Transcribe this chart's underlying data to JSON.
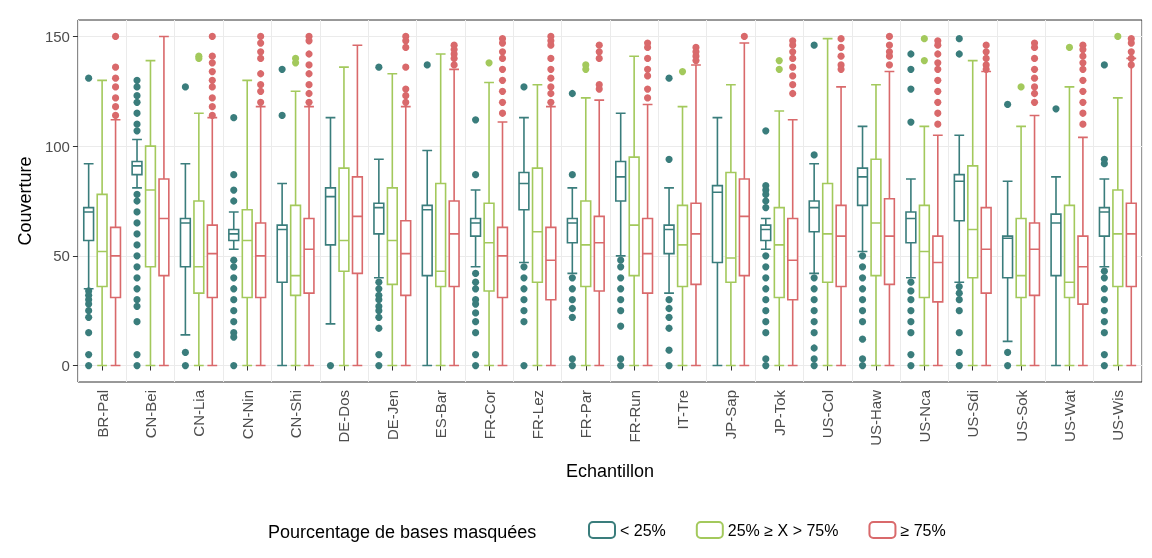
{
  "chart_data": {
    "type": "box",
    "xlabel": "Echantillon",
    "ylabel": "Couverture",
    "legend_title": "Pourcentage de bases masquées",
    "legend": "bottom",
    "grid": true,
    "ylim": [
      -7.5,
      157.5
    ],
    "yticks": [
      0,
      50,
      100,
      150
    ],
    "categories": [
      "BR-Pal",
      "CN-Bei",
      "CN-Lia",
      "CN-Nin",
      "CN-Shi",
      "DE-Dos",
      "DE-Jen",
      "ES-Bar",
      "FR-Cor",
      "FR-Lez",
      "FR-Par",
      "FR-Run",
      "IT-Tre",
      "JP-Sap",
      "JP-Tok",
      "US-Col",
      "US-Haw",
      "US-Nca",
      "US-Sdi",
      "US-Sok",
      "US-Wat",
      "US-Wis"
    ],
    "series": [
      {
        "name": "< 25%",
        "color": "#3a7d7c",
        "boxes": [
          {
            "low": 35,
            "q1": 57,
            "median": 70,
            "q3": 72,
            "high": 92,
            "outliers": [
              131,
              34,
              32,
              30,
              28,
              25,
              22,
              15,
              5,
              0
            ]
          },
          {
            "low": 81,
            "q1": 87,
            "median": 91,
            "q3": 93,
            "high": 103,
            "outliers": [
              130,
              127,
              123,
              120,
              115,
              110,
              107,
              78,
              75,
              70,
              65,
              60,
              55,
              50,
              45,
              40,
              35,
              30,
              27,
              20,
              5,
              0
            ]
          },
          {
            "low": 14,
            "q1": 45,
            "median": 65,
            "q3": 67,
            "high": 92,
            "outliers": [
              127,
              6,
              0
            ]
          },
          {
            "low": 53,
            "q1": 57,
            "median": 60,
            "q3": 62,
            "high": 70,
            "outliers": [
              113,
              87,
              80,
              75,
              48,
              45,
              40,
              35,
              30,
              25,
              20,
              15,
              13,
              0
            ]
          },
          {
            "low": 0,
            "q1": 38,
            "median": 62,
            "q3": 64,
            "high": 83,
            "outliers": [
              135,
              114
            ]
          },
          {
            "low": 19,
            "q1": 55,
            "median": 77,
            "q3": 81,
            "high": 113,
            "outliers": [
              0
            ]
          },
          {
            "low": 40,
            "q1": 60,
            "median": 72,
            "q3": 74,
            "high": 94,
            "outliers": [
              136,
              38,
              35,
              32,
              30,
              27,
              25,
              22,
              17,
              5,
              0
            ]
          },
          {
            "low": 0,
            "q1": 41,
            "median": 71,
            "q3": 73,
            "high": 98,
            "outliers": [
              137
            ]
          },
          {
            "low": 45,
            "q1": 59,
            "median": 65,
            "q3": 67,
            "high": 80,
            "outliers": [
              112,
              87,
              42,
              38,
              35,
              30,
              28,
              24,
              20,
              15,
              5,
              0
            ]
          },
          {
            "low": 47,
            "q1": 71,
            "median": 83,
            "q3": 88,
            "high": 113,
            "outliers": [
              127,
              45,
              40,
              35,
              30,
              25,
              20,
              0
            ]
          },
          {
            "low": 42,
            "q1": 56,
            "median": 65,
            "q3": 67,
            "high": 81,
            "outliers": [
              124,
              87,
              40,
              35,
              30,
              26,
              22,
              3,
              0
            ]
          },
          {
            "low": 50,
            "q1": 75,
            "median": 86,
            "q3": 93,
            "high": 115,
            "outliers": [
              48,
              45,
              40,
              35,
              30,
              25,
              18,
              3,
              0
            ]
          },
          {
            "low": 33,
            "q1": 51,
            "median": 62,
            "q3": 64,
            "high": 81,
            "outliers": [
              131,
              94,
              30,
              26,
              22,
              17,
              7,
              0
            ]
          },
          {
            "low": 0,
            "q1": 47,
            "median": 79,
            "q3": 82,
            "high": 113
          },
          {
            "low": 53,
            "q1": 57,
            "median": 62,
            "q3": 64,
            "high": 67,
            "outliers": [
              107,
              82,
              80,
              78,
              75,
              72,
              50,
              45,
              40,
              35,
              30,
              25,
              20,
              15,
              3,
              0
            ]
          },
          {
            "low": 42,
            "q1": 61,
            "median": 72,
            "q3": 75,
            "high": 92,
            "outliers": [
              146,
              96,
              40,
              35,
              30,
              25,
              20,
              15,
              8,
              3,
              0
            ]
          },
          {
            "low": 52,
            "q1": 73,
            "median": 86,
            "q3": 90,
            "high": 109,
            "outliers": [
              50,
              45,
              40,
              35,
              30,
              25,
              20,
              12,
              3,
              0
            ]
          },
          {
            "low": 40,
            "q1": 56,
            "median": 67,
            "q3": 70,
            "high": 85,
            "outliers": [
              142,
              135,
              126,
              111,
              38,
              34,
              30,
              25,
              20,
              15,
              5,
              0
            ]
          },
          {
            "low": 38,
            "q1": 66,
            "median": 84,
            "q3": 87,
            "high": 105,
            "outliers": [
              149,
              142,
              36,
              33,
              30,
              25,
              15,
              6,
              0
            ]
          },
          {
            "low": 11,
            "q1": 40,
            "median": 58,
            "q3": 59,
            "high": 84,
            "outliers": [
              119,
              6,
              0
            ]
          },
          {
            "low": 0,
            "q1": 41,
            "median": 65,
            "q3": 69,
            "high": 86,
            "outliers": [
              117
            ]
          },
          {
            "low": 45,
            "q1": 59,
            "median": 70,
            "q3": 72,
            "high": 85,
            "outliers": [
              137,
              94,
              92,
              43,
              40,
              35,
              30,
              25,
              20,
              15,
              5,
              0
            ]
          }
        ]
      },
      {
        "name": "25% ≥ X > 75%",
        "color": "#a3c95c",
        "boxes": [
          {
            "low": 0,
            "q1": 36,
            "median": 52,
            "q3": 78,
            "high": 130
          },
          {
            "low": 0,
            "q1": 45,
            "median": 80,
            "q3": 100,
            "high": 139
          },
          {
            "low": 0,
            "q1": 33,
            "median": 45,
            "q3": 75,
            "high": 115,
            "outliers": [
              141,
              140
            ]
          },
          {
            "low": 0,
            "q1": 31,
            "median": 57,
            "q3": 71,
            "high": 130
          },
          {
            "low": 0,
            "q1": 32,
            "median": 41,
            "q3": 73,
            "high": 125,
            "outliers": [
              140,
              138
            ]
          },
          {
            "low": 0,
            "q1": 43,
            "median": 57,
            "q3": 90,
            "high": 136
          },
          {
            "low": 0,
            "q1": 37,
            "median": 57,
            "q3": 81,
            "high": 133
          },
          {
            "low": 0,
            "q1": 36,
            "median": 43,
            "q3": 83,
            "high": 142
          },
          {
            "low": 0,
            "q1": 34,
            "median": 56,
            "q3": 74,
            "high": 129,
            "outliers": [
              138
            ]
          },
          {
            "low": 0,
            "q1": 38,
            "median": 61,
            "q3": 90,
            "high": 128
          },
          {
            "low": 0,
            "q1": 36,
            "median": 55,
            "q3": 75,
            "high": 122,
            "outliers": [
              137,
              135
            ]
          },
          {
            "low": 0,
            "q1": 41,
            "median": 64,
            "q3": 95,
            "high": 141
          },
          {
            "low": 0,
            "q1": 36,
            "median": 55,
            "q3": 73,
            "high": 118,
            "outliers": [
              134
            ]
          },
          {
            "low": 0,
            "q1": 38,
            "median": 49,
            "q3": 88,
            "high": 128
          },
          {
            "low": 0,
            "q1": 31,
            "median": 55,
            "q3": 72,
            "high": 116,
            "outliers": [
              139,
              135
            ]
          },
          {
            "low": 0,
            "q1": 38,
            "median": 60,
            "q3": 83,
            "high": 149
          },
          {
            "low": 0,
            "q1": 41,
            "median": 65,
            "q3": 94,
            "high": 128
          },
          {
            "low": 0,
            "q1": 31,
            "median": 52,
            "q3": 73,
            "high": 109,
            "outliers": [
              149,
              139
            ]
          },
          {
            "low": 0,
            "q1": 40,
            "median": 62,
            "q3": 91,
            "high": 139
          },
          {
            "low": 0,
            "q1": 31,
            "median": 41,
            "q3": 67,
            "high": 109,
            "outliers": [
              127
            ]
          },
          {
            "low": 0,
            "q1": 31,
            "median": 38,
            "q3": 73,
            "high": 127,
            "outliers": [
              145
            ]
          },
          {
            "low": 0,
            "q1": 36,
            "median": 60,
            "q3": 80,
            "high": 122,
            "outliers": [
              150
            ]
          }
        ]
      },
      {
        "name": "≥ 75%",
        "color": "#d9696b",
        "boxes": [
          {
            "low": 0,
            "q1": 31,
            "median": 50,
            "q3": 63,
            "high": 112,
            "outliers": [
              150,
              136,
              131,
              127,
              122,
              118,
              114
            ]
          },
          {
            "low": 0,
            "q1": 41,
            "median": 67,
            "q3": 85,
            "high": 150
          },
          {
            "low": 0,
            "q1": 31,
            "median": 51,
            "q3": 64,
            "high": 113,
            "outliers": [
              150,
              141,
              138,
              134,
              130,
              127,
              122,
              118,
              114
            ]
          },
          {
            "low": 0,
            "q1": 31,
            "median": 50,
            "q3": 65,
            "high": 118,
            "outliers": [
              150,
              147,
              143,
              140,
              133,
              128,
              125,
              120
            ]
          },
          {
            "low": 0,
            "q1": 33,
            "median": 53,
            "q3": 67,
            "high": 118,
            "outliers": [
              150,
              148,
              142,
              137,
              133,
              128,
              124,
              120
            ]
          },
          {
            "low": 0,
            "q1": 42,
            "median": 68,
            "q3": 86,
            "high": 146
          },
          {
            "low": 0,
            "q1": 32,
            "median": 51,
            "q3": 66,
            "high": 118,
            "outliers": [
              150,
              148,
              145,
              136,
              126,
              123,
              120
            ]
          },
          {
            "low": 0,
            "q1": 36,
            "median": 60,
            "q3": 75,
            "high": 135,
            "outliers": [
              146,
              144,
              142,
              140,
              137
            ]
          },
          {
            "low": 0,
            "q1": 31,
            "median": 50,
            "q3": 63,
            "high": 111,
            "outliers": [
              149,
              147,
              143,
              140,
              135,
              130,
              125,
              120,
              115
            ]
          },
          {
            "low": 0,
            "q1": 30,
            "median": 48,
            "q3": 63,
            "high": 118,
            "outliers": [
              150,
              148,
              146,
              140,
              135,
              131,
              127,
              124,
              120
            ]
          },
          {
            "low": 0,
            "q1": 34,
            "median": 56,
            "q3": 68,
            "high": 121,
            "outliers": [
              146,
              143,
              140,
              128,
              126
            ]
          },
          {
            "low": 0,
            "q1": 33,
            "median": 51,
            "q3": 67,
            "high": 119,
            "outliers": [
              147,
              145,
              140,
              135,
              132,
              126,
              122
            ]
          },
          {
            "low": 0,
            "q1": 37,
            "median": 60,
            "q3": 74,
            "high": 137,
            "outliers": [
              145,
              143,
              141,
              139
            ]
          },
          {
            "low": 0,
            "q1": 41,
            "median": 68,
            "q3": 85,
            "high": 147,
            "outliers": [
              150
            ]
          },
          {
            "low": 0,
            "q1": 30,
            "median": 48,
            "q3": 67,
            "high": 112,
            "outliers": [
              148,
              146,
              143,
              140,
              136,
              132,
              128,
              124
            ]
          },
          {
            "low": 0,
            "q1": 36,
            "median": 59,
            "q3": 73,
            "high": 127,
            "outliers": [
              149,
              145,
              141,
              137,
              135
            ]
          },
          {
            "low": 0,
            "q1": 37,
            "median": 59,
            "q3": 76,
            "high": 134,
            "outliers": [
              150,
              146,
              143,
              141,
              137
            ]
          },
          {
            "low": 0,
            "q1": 29,
            "median": 47,
            "q3": 59,
            "high": 105,
            "outliers": [
              148,
              146,
              142,
              138,
              135,
              130,
              125,
              120,
              115,
              110
            ]
          },
          {
            "low": 0,
            "q1": 33,
            "median": 53,
            "q3": 72,
            "high": 134,
            "outliers": [
              146,
              143,
              140,
              137,
              135
            ]
          },
          {
            "low": 0,
            "q1": 32,
            "median": 53,
            "q3": 65,
            "high": 114,
            "outliers": [
              147,
              145,
              140,
              135,
              131,
              127,
              124,
              120
            ]
          },
          {
            "low": 0,
            "q1": 28,
            "median": 45,
            "q3": 59,
            "high": 104,
            "outliers": [
              146,
              144,
              141,
              138,
              135,
              130,
              125,
              120,
              115,
              110
            ]
          },
          {
            "low": 0,
            "q1": 36,
            "median": 60,
            "q3": 74,
            "high": 140,
            "outliers": [
              149,
              147,
              143,
              140,
              137
            ]
          }
        ]
      }
    ]
  }
}
